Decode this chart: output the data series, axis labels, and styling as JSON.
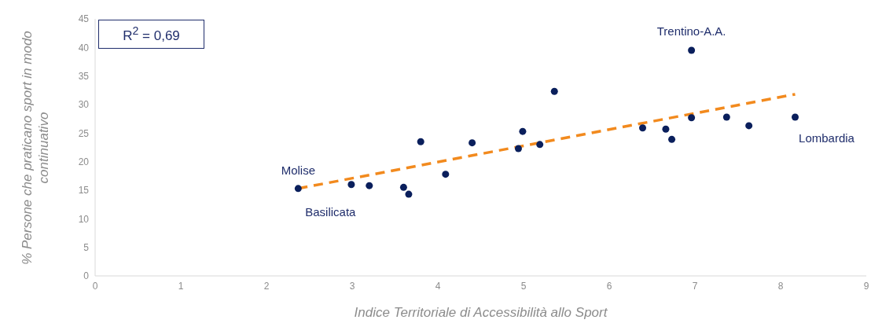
{
  "chart_data": {
    "type": "scatter",
    "xlabel": "Indice Territoriale di Accessibilità allo Sport",
    "ylabel": "% Persone che praticano sport in modo continuativo",
    "xlim": [
      0,
      9
    ],
    "xticks": [
      0,
      1,
      2,
      3,
      4,
      5,
      6,
      7,
      8,
      9
    ],
    "ylim": [
      0,
      45
    ],
    "yticks": [
      0,
      5,
      10,
      15,
      20,
      25,
      30,
      35,
      40,
      45
    ],
    "grid": false,
    "legend": false,
    "marker": "circle",
    "series": [
      {
        "color": "#0a1f5c",
        "x": [
          2.37,
          2.99,
          3.2,
          3.6,
          3.66,
          3.8,
          4.09,
          4.4,
          4.94,
          4.99,
          5.19,
          5.36,
          6.39,
          6.66,
          6.73,
          6.96,
          6.96,
          7.37,
          7.63,
          8.17
        ],
        "values": [
          15.3,
          16.0,
          15.8,
          15.5,
          14.3,
          23.5,
          17.8,
          23.3,
          22.3,
          25.3,
          23.0,
          32.3,
          25.9,
          25.7,
          23.9,
          39.5,
          27.7,
          27.8,
          26.3,
          27.8
        ]
      },
      {
        "type": "line",
        "color": "#f28a1e",
        "line_style": "dashed",
        "marker": "none",
        "x": [
          2.37,
          8.17
        ],
        "values": [
          15.3,
          31.8
        ]
      }
    ],
    "annotations": [
      "R$^{2}$ = 0,69",
      {
        "text": "Molise",
        "x": 2.37,
        "y": 15.3
      },
      {
        "text": "Basilicata",
        "x": 2.37,
        "y": 15.3
      },
      {
        "text": "Trentino-A.A.",
        "x": 6.96,
        "y": 39.5
      },
      {
        "text": "Lombardia",
        "x": 8.17,
        "y": 27.8
      }
    ]
  }
}
